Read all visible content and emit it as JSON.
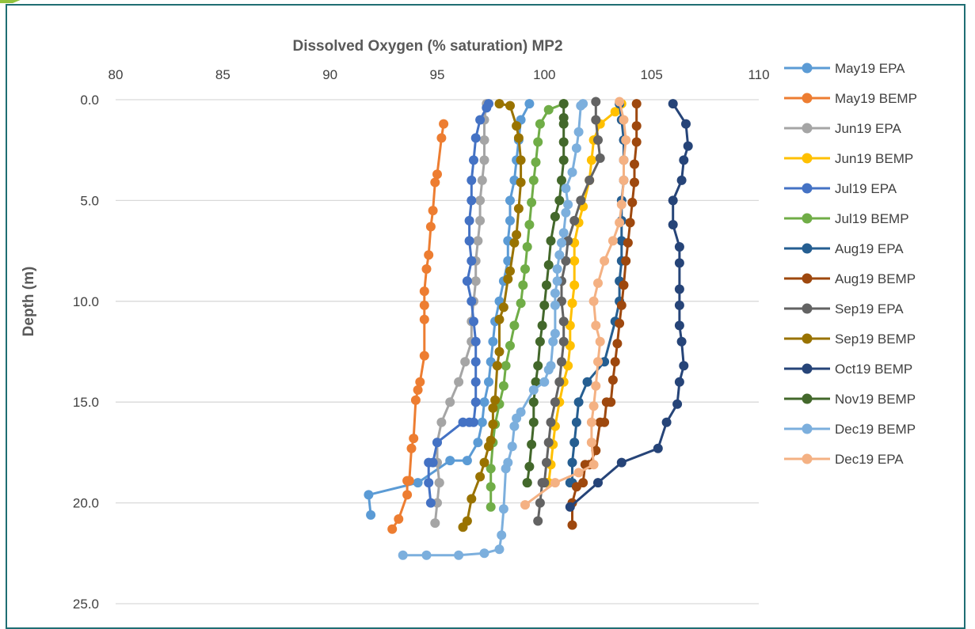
{
  "chart_data": {
    "type": "line",
    "title": "Dissolved Oxygen (% saturation) MP2",
    "xlabel": "",
    "ylabel": "Depth (m)",
    "xlim": [
      80,
      110
    ],
    "ylim": [
      0,
      25
    ],
    "y_reversed": true,
    "x_axis_position": "top",
    "grid": true,
    "legend_position": "right",
    "x_ticks": [
      "80",
      "85",
      "90",
      "95",
      "100",
      "105",
      "110"
    ],
    "y_ticks": [
      "0.0",
      "5.0",
      "10.0",
      "15.0",
      "20.0",
      "25.0"
    ],
    "series": [
      {
        "name": "May19 EPA",
        "color": "#5b9bd5",
        "x": [
          99.3,
          98.9,
          98.8,
          98.7,
          98.6,
          98.4,
          98.4,
          98.3,
          98.3,
          98.1,
          97.9,
          97.7,
          97.6,
          97.5,
          97.4,
          97.2,
          97.1,
          96.9,
          96.4,
          95.6,
          94.1,
          91.8,
          91.9
        ],
        "y": [
          0.2,
          1.0,
          2.0,
          3.0,
          4.0,
          5.0,
          6.0,
          7.0,
          8.0,
          9.0,
          10.0,
          11.0,
          12.0,
          13.0,
          14.0,
          15.0,
          16.0,
          17.0,
          17.9,
          17.9,
          19.0,
          19.6,
          20.6
        ]
      },
      {
        "name": "May19 BEMP",
        "color": "#ed7d31",
        "x": [
          95.3,
          95.2,
          95.0,
          94.9,
          94.8,
          94.7,
          94.6,
          94.5,
          94.4,
          94.4,
          94.4,
          94.4,
          94.2,
          94.1,
          94.0,
          93.9,
          93.8,
          93.7,
          93.6,
          93.6,
          93.2,
          92.9
        ],
        "y": [
          1.2,
          1.9,
          3.7,
          4.1,
          5.5,
          6.3,
          7.7,
          8.4,
          9.5,
          10.2,
          10.9,
          12.7,
          14.0,
          14.4,
          14.9,
          16.8,
          17.3,
          18.9,
          18.9,
          19.6,
          20.8,
          21.3
        ]
      },
      {
        "name": "Jun19 EPA",
        "color": "#a5a5a5",
        "x": [
          97.3,
          97.2,
          97.2,
          97.2,
          97.1,
          97.0,
          97.0,
          96.9,
          96.8,
          96.8,
          96.7,
          96.6,
          96.6,
          96.6,
          96.3,
          96.0,
          95.6,
          95.2,
          95.0,
          95.0,
          95.1,
          95.1,
          95.0,
          94.9
        ],
        "y": [
          0.2,
          1.0,
          2.0,
          3.0,
          4.0,
          5.0,
          6.0,
          7.0,
          8.0,
          9.0,
          10.0,
          11.0,
          12.0,
          12.0,
          13.0,
          14.0,
          15.0,
          16.0,
          17.0,
          18.0,
          19.0,
          19.0,
          20.0,
          21.0
        ]
      },
      {
        "name": "Jun19 BEMP",
        "color": "#ffc000",
        "x": [
          103.6,
          103.3,
          102.6,
          102.3,
          102.2,
          102.1,
          101.8,
          101.6,
          101.4,
          101.4,
          101.4,
          101.3,
          101.2,
          101.2,
          101.1,
          100.9,
          100.7,
          100.5,
          100.4,
          100.3,
          100.2,
          100.1,
          100.1,
          100.1
        ],
        "y": [
          0.2,
          0.6,
          1.2,
          2.0,
          3.0,
          4.0,
          5.3,
          6.1,
          7.1,
          8.0,
          9.2,
          10.1,
          11.2,
          12.2,
          13.2,
          14.0,
          15.0,
          16.2,
          17.1,
          18.1,
          19.0,
          19.0,
          19.0,
          19.0
        ]
      },
      {
        "name": "Jul19 EPA",
        "color": "#4472c4",
        "x": [
          97.4,
          97.3,
          97.0,
          96.8,
          96.7,
          96.6,
          96.6,
          96.5,
          96.5,
          96.6,
          96.4,
          96.6,
          96.7,
          96.8,
          96.8,
          96.8,
          96.8,
          96.7,
          96.5,
          96.2,
          95.0,
          94.8,
          94.6,
          94.6,
          94.7
        ],
        "y": [
          0.2,
          0.4,
          1.0,
          1.9,
          3.0,
          4.0,
          5.0,
          6.0,
          7.0,
          8.0,
          9.0,
          10.0,
          11.0,
          12.0,
          13.0,
          14.0,
          15.0,
          16.0,
          16.0,
          16.0,
          17.0,
          18.0,
          18.0,
          19.0,
          20.0
        ]
      },
      {
        "name": "Jul19 BEMP",
        "color": "#70ad47",
        "x": [
          100.9,
          100.2,
          99.8,
          99.7,
          99.6,
          99.5,
          99.4,
          99.3,
          99.2,
          99.1,
          99.0,
          98.9,
          98.6,
          98.4,
          98.2,
          98.1,
          97.9,
          97.7,
          97.6,
          97.5,
          97.5,
          97.5
        ],
        "y": [
          0.2,
          0.5,
          1.2,
          2.1,
          3.1,
          4.0,
          5.1,
          6.2,
          7.3,
          8.4,
          9.2,
          10.1,
          11.2,
          12.2,
          13.2,
          14.2,
          15.1,
          16.1,
          17.0,
          18.3,
          19.2,
          20.2
        ]
      },
      {
        "name": "Aug19 EPA",
        "color": "#255e91",
        "x": [
          103.5,
          103.6,
          103.7,
          103.7,
          103.7,
          103.6,
          103.6,
          103.6,
          103.6,
          103.5,
          103.5,
          103.3,
          102.8,
          102.0,
          101.6,
          101.5,
          101.4,
          101.3,
          101.3,
          101.2
        ],
        "y": [
          0.2,
          1.0,
          2.0,
          3.0,
          4.0,
          5.0,
          6.0,
          7.0,
          8.0,
          9.0,
          10.0,
          11.0,
          13.0,
          14.0,
          15.0,
          16.0,
          17.0,
          18.0,
          19.0,
          19.0
        ]
      },
      {
        "name": "Aug19 BEMP",
        "color": "#9e480e",
        "x": [
          104.3,
          104.3,
          104.3,
          104.2,
          104.2,
          104.1,
          104.0,
          103.9,
          103.8,
          103.7,
          103.6,
          103.5,
          103.4,
          103.3,
          103.2,
          103.1,
          102.9,
          102.8,
          102.6,
          102.4,
          102.1,
          101.9,
          101.8,
          101.5,
          101.3,
          101.3
        ],
        "y": [
          0.2,
          1.3,
          2.1,
          3.2,
          4.1,
          5.1,
          6.1,
          7.1,
          8.0,
          9.2,
          10.2,
          11.1,
          12.1,
          13.0,
          13.9,
          15.0,
          15.0,
          16.0,
          16.0,
          17.4,
          18.1,
          18.1,
          19.0,
          19.2,
          20.0,
          21.1
        ]
      },
      {
        "name": "Sep19 EPA",
        "color": "#636363",
        "x": [
          102.4,
          102.4,
          102.5,
          102.6,
          102.1,
          101.7,
          101.4,
          101.1,
          101.0,
          100.8,
          100.8,
          100.9,
          100.9,
          100.8,
          100.7,
          100.5,
          100.3,
          100.2,
          100.1,
          100.0,
          99.9,
          99.8,
          99.7
        ],
        "y": [
          0.1,
          1.0,
          2.0,
          2.9,
          4.0,
          5.0,
          6.0,
          7.0,
          8.0,
          9.0,
          10.0,
          11.0,
          12.0,
          13.0,
          14.0,
          15.0,
          16.0,
          17.0,
          18.0,
          19.0,
          19.0,
          20.0,
          20.9
        ]
      },
      {
        "name": "Sep19 BEMP",
        "color": "#997300",
        "x": [
          97.9,
          98.4,
          98.7,
          98.8,
          98.9,
          98.9,
          98.8,
          98.7,
          98.6,
          98.4,
          98.3,
          98.1,
          97.9,
          97.9,
          97.8,
          97.7,
          97.6,
          97.6,
          97.5,
          97.4,
          97.2,
          97.0,
          96.6,
          96.4,
          96.2
        ],
        "y": [
          0.2,
          0.3,
          1.3,
          1.9,
          3.0,
          4.1,
          5.4,
          6.7,
          7.1,
          8.5,
          8.9,
          10.3,
          10.9,
          12.5,
          13.2,
          14.9,
          15.3,
          16.1,
          16.9,
          17.2,
          18.0,
          18.7,
          19.8,
          20.9,
          21.2
        ]
      },
      {
        "name": "Oct19 BEMP",
        "color": "#264478",
        "x": [
          106.0,
          106.6,
          106.7,
          106.5,
          106.4,
          106.0,
          106.0,
          106.3,
          106.3,
          106.3,
          106.3,
          106.3,
          106.4,
          106.5,
          106.3,
          106.2,
          105.7,
          105.3,
          103.6,
          102.5,
          101.2
        ],
        "y": [
          0.2,
          1.2,
          2.3,
          3.0,
          4.0,
          5.0,
          6.2,
          7.3,
          8.1,
          9.4,
          10.2,
          11.2,
          12.0,
          13.2,
          14.0,
          15.1,
          16.0,
          17.3,
          18.0,
          19.0,
          20.2
        ]
      },
      {
        "name": "Nov19 BEMP",
        "color": "#43682b",
        "x": [
          100.9,
          100.9,
          100.9,
          100.9,
          100.9,
          100.8,
          100.7,
          100.5,
          100.3,
          100.2,
          100.1,
          100.0,
          99.9,
          99.8,
          99.7,
          99.6,
          99.5,
          99.5,
          99.4,
          99.3,
          99.2,
          99.2
        ],
        "y": [
          0.2,
          0.9,
          1.2,
          2.1,
          3.0,
          4.0,
          5.0,
          5.8,
          7.0,
          8.2,
          9.2,
          10.2,
          11.2,
          12.0,
          13.2,
          14.0,
          15.0,
          16.0,
          17.1,
          18.2,
          19.0,
          19.0
        ]
      },
      {
        "name": "Dec19 BEMP",
        "color": "#7cafdd",
        "x": [
          101.8,
          101.7,
          101.6,
          101.5,
          101.3,
          101.0,
          101.1,
          101.0,
          100.9,
          100.8,
          100.7,
          100.6,
          100.6,
          100.5,
          100.5,
          100.5,
          100.4,
          100.3,
          100.2,
          100.0,
          99.5,
          98.9,
          98.7,
          98.6,
          98.5,
          98.3,
          98.2,
          98.1,
          98.0,
          97.9,
          97.2,
          96.0,
          94.5,
          93.4
        ],
        "y": [
          0.2,
          0.3,
          1.6,
          2.4,
          3.6,
          4.4,
          5.2,
          5.6,
          6.6,
          7.1,
          7.7,
          8.4,
          9.0,
          9.6,
          10.2,
          11.6,
          12.0,
          13.2,
          13.4,
          14.0,
          14.4,
          15.5,
          15.8,
          16.2,
          17.2,
          18.0,
          18.3,
          20.3,
          21.6,
          22.3,
          22.5,
          22.6,
          22.6,
          22.6
        ]
      },
      {
        "name": "Dec19 EPA",
        "color": "#f4b183",
        "x": [
          103.5,
          103.7,
          103.8,
          103.7,
          103.7,
          103.6,
          103.5,
          103.2,
          102.8,
          102.5,
          102.3,
          102.4,
          102.6,
          102.5,
          102.4,
          102.3,
          102.2,
          102.2,
          102.2,
          102.3,
          101.6,
          100.5,
          99.1
        ],
        "y": [
          0.1,
          1.0,
          2.0,
          3.0,
          4.0,
          5.2,
          6.1,
          7.0,
          8.0,
          9.1,
          10.0,
          11.2,
          12.0,
          13.0,
          14.2,
          15.2,
          16.0,
          17.0,
          17.0,
          18.1,
          18.5,
          19.0,
          20.1
        ]
      }
    ]
  }
}
